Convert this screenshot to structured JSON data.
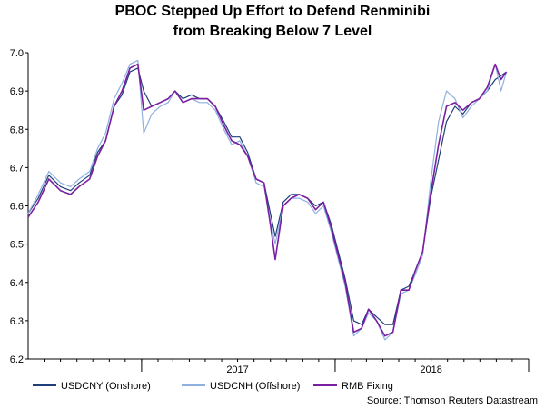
{
  "chart_data": {
    "type": "line",
    "title": "PBOC Stepped Up Effort to Defend Renminibi",
    "subtitle": "from Breaking Below 7 Level",
    "xlabel": "",
    "ylabel": "",
    "ylim": [
      6.2,
      7.0
    ],
    "y_ticks": [
      6.2,
      6.3,
      6.4,
      6.5,
      6.6,
      6.7,
      6.8,
      6.9,
      7.0
    ],
    "x_ticks": [
      "2017",
      "2018"
    ],
    "grid": false,
    "legend_position": "bottom",
    "source": "Source: Thomson Reuters Datastream",
    "x_period_start": "2016-06",
    "x_period_end": "2019-01",
    "series": [
      {
        "name": "USDCNY (Onshore)",
        "color": "#1f3f7a",
        "x": [
          "2016-06-01",
          "2016-06-20",
          "2016-07-10",
          "2016-08-01",
          "2016-08-20",
          "2016-09-05",
          "2016-09-25",
          "2016-10-10",
          "2016-10-25",
          "2016-11-10",
          "2016-11-25",
          "2016-12-10",
          "2016-12-25",
          "2017-01-05",
          "2017-01-20",
          "2017-02-05",
          "2017-02-20",
          "2017-03-05",
          "2017-03-20",
          "2017-04-05",
          "2017-04-20",
          "2017-05-05",
          "2017-05-20",
          "2017-06-05",
          "2017-06-20",
          "2017-07-05",
          "2017-07-20",
          "2017-08-05",
          "2017-08-20",
          "2017-09-01",
          "2017-09-10",
          "2017-09-25",
          "2017-10-10",
          "2017-10-25",
          "2017-11-10",
          "2017-11-25",
          "2017-12-10",
          "2017-12-25",
          "2018-01-05",
          "2018-01-20",
          "2018-02-05",
          "2018-02-20",
          "2018-03-05",
          "2018-03-20",
          "2018-04-05",
          "2018-04-20",
          "2018-05-05",
          "2018-05-20",
          "2018-06-01",
          "2018-06-15",
          "2018-06-30",
          "2018-07-15",
          "2018-07-30",
          "2018-08-15",
          "2018-08-30",
          "2018-09-15",
          "2018-09-30",
          "2018-10-15",
          "2018-10-30",
          "2018-11-10",
          "2018-11-20"
        ],
        "y": [
          6.58,
          6.62,
          6.68,
          6.65,
          6.64,
          6.66,
          6.68,
          6.74,
          6.77,
          6.86,
          6.89,
          6.95,
          6.96,
          6.9,
          6.86,
          6.87,
          6.88,
          6.9,
          6.88,
          6.89,
          6.88,
          6.88,
          6.86,
          6.82,
          6.78,
          6.78,
          6.74,
          6.67,
          6.66,
          6.58,
          6.52,
          6.61,
          6.63,
          6.63,
          6.62,
          6.6,
          6.61,
          6.55,
          6.49,
          6.41,
          6.3,
          6.29,
          6.33,
          6.31,
          6.29,
          6.29,
          6.38,
          6.39,
          6.43,
          6.48,
          6.62,
          6.72,
          6.82,
          6.86,
          6.84,
          6.87,
          6.88,
          6.9,
          6.93,
          6.94,
          6.95
        ]
      },
      {
        "name": "USDCNH (Offshore)",
        "color": "#8fb0e0",
        "x": [
          "2016-06-01",
          "2016-06-20",
          "2016-07-10",
          "2016-08-01",
          "2016-08-20",
          "2016-09-05",
          "2016-09-25",
          "2016-10-10",
          "2016-10-25",
          "2016-11-10",
          "2016-11-25",
          "2016-12-10",
          "2016-12-25",
          "2017-01-05",
          "2017-01-20",
          "2017-02-05",
          "2017-02-20",
          "2017-03-05",
          "2017-03-20",
          "2017-04-05",
          "2017-04-20",
          "2017-05-05",
          "2017-05-20",
          "2017-06-05",
          "2017-06-20",
          "2017-07-05",
          "2017-07-20",
          "2017-08-05",
          "2017-08-20",
          "2017-09-01",
          "2017-09-10",
          "2017-09-25",
          "2017-10-10",
          "2017-10-25",
          "2017-11-10",
          "2017-11-25",
          "2017-12-10",
          "2017-12-25",
          "2018-01-05",
          "2018-01-20",
          "2018-02-05",
          "2018-02-20",
          "2018-03-05",
          "2018-03-20",
          "2018-04-05",
          "2018-04-20",
          "2018-05-05",
          "2018-05-20",
          "2018-06-01",
          "2018-06-15",
          "2018-06-30",
          "2018-07-15",
          "2018-07-30",
          "2018-08-15",
          "2018-08-30",
          "2018-09-15",
          "2018-09-30",
          "2018-10-15",
          "2018-10-30",
          "2018-11-10",
          "2018-11-20"
        ],
        "y": [
          6.58,
          6.63,
          6.69,
          6.66,
          6.65,
          6.67,
          6.69,
          6.75,
          6.79,
          6.88,
          6.92,
          6.97,
          6.98,
          6.79,
          6.84,
          6.86,
          6.87,
          6.9,
          6.87,
          6.88,
          6.87,
          6.87,
          6.85,
          6.8,
          6.76,
          6.77,
          6.73,
          6.66,
          6.65,
          6.56,
          6.5,
          6.6,
          6.62,
          6.62,
          6.61,
          6.58,
          6.6,
          6.53,
          6.47,
          6.39,
          6.26,
          6.28,
          6.32,
          6.3,
          6.25,
          6.27,
          6.37,
          6.38,
          6.42,
          6.47,
          6.66,
          6.82,
          6.9,
          6.88,
          6.83,
          6.86,
          6.88,
          6.9,
          6.97,
          6.9,
          6.95
        ]
      },
      {
        "name": "RMB Fixing",
        "color": "#7b1fa2",
        "x": [
          "2016-06-01",
          "2016-06-20",
          "2016-07-10",
          "2016-08-01",
          "2016-08-20",
          "2016-09-05",
          "2016-09-25",
          "2016-10-10",
          "2016-10-25",
          "2016-11-10",
          "2016-11-25",
          "2016-12-10",
          "2016-12-25",
          "2017-01-05",
          "2017-01-20",
          "2017-02-05",
          "2017-02-20",
          "2017-03-05",
          "2017-03-20",
          "2017-04-05",
          "2017-04-20",
          "2017-05-05",
          "2017-05-20",
          "2017-06-05",
          "2017-06-20",
          "2017-07-05",
          "2017-07-20",
          "2017-08-05",
          "2017-08-20",
          "2017-09-01",
          "2017-09-10",
          "2017-09-25",
          "2017-10-10",
          "2017-10-25",
          "2017-11-10",
          "2017-11-25",
          "2017-12-10",
          "2017-12-25",
          "2018-01-05",
          "2018-01-20",
          "2018-02-05",
          "2018-02-20",
          "2018-03-05",
          "2018-03-20",
          "2018-04-05",
          "2018-04-20",
          "2018-05-05",
          "2018-05-20",
          "2018-06-01",
          "2018-06-15",
          "2018-06-30",
          "2018-07-15",
          "2018-07-30",
          "2018-08-15",
          "2018-08-30",
          "2018-09-15",
          "2018-09-30",
          "2018-10-15",
          "2018-10-30",
          "2018-11-10",
          "2018-11-20"
        ],
        "y": [
          6.57,
          6.61,
          6.67,
          6.64,
          6.63,
          6.65,
          6.67,
          6.73,
          6.77,
          6.86,
          6.9,
          6.96,
          6.97,
          6.85,
          6.86,
          6.87,
          6.88,
          6.9,
          6.87,
          6.88,
          6.88,
          6.88,
          6.86,
          6.81,
          6.77,
          6.76,
          6.73,
          6.67,
          6.66,
          6.55,
          6.46,
          6.6,
          6.62,
          6.63,
          6.62,
          6.59,
          6.61,
          6.54,
          6.48,
          6.4,
          6.27,
          6.28,
          6.33,
          6.3,
          6.26,
          6.27,
          6.38,
          6.38,
          6.43,
          6.48,
          6.63,
          6.76,
          6.86,
          6.87,
          6.85,
          6.87,
          6.88,
          6.91,
          6.97,
          6.93,
          6.95
        ]
      }
    ]
  }
}
